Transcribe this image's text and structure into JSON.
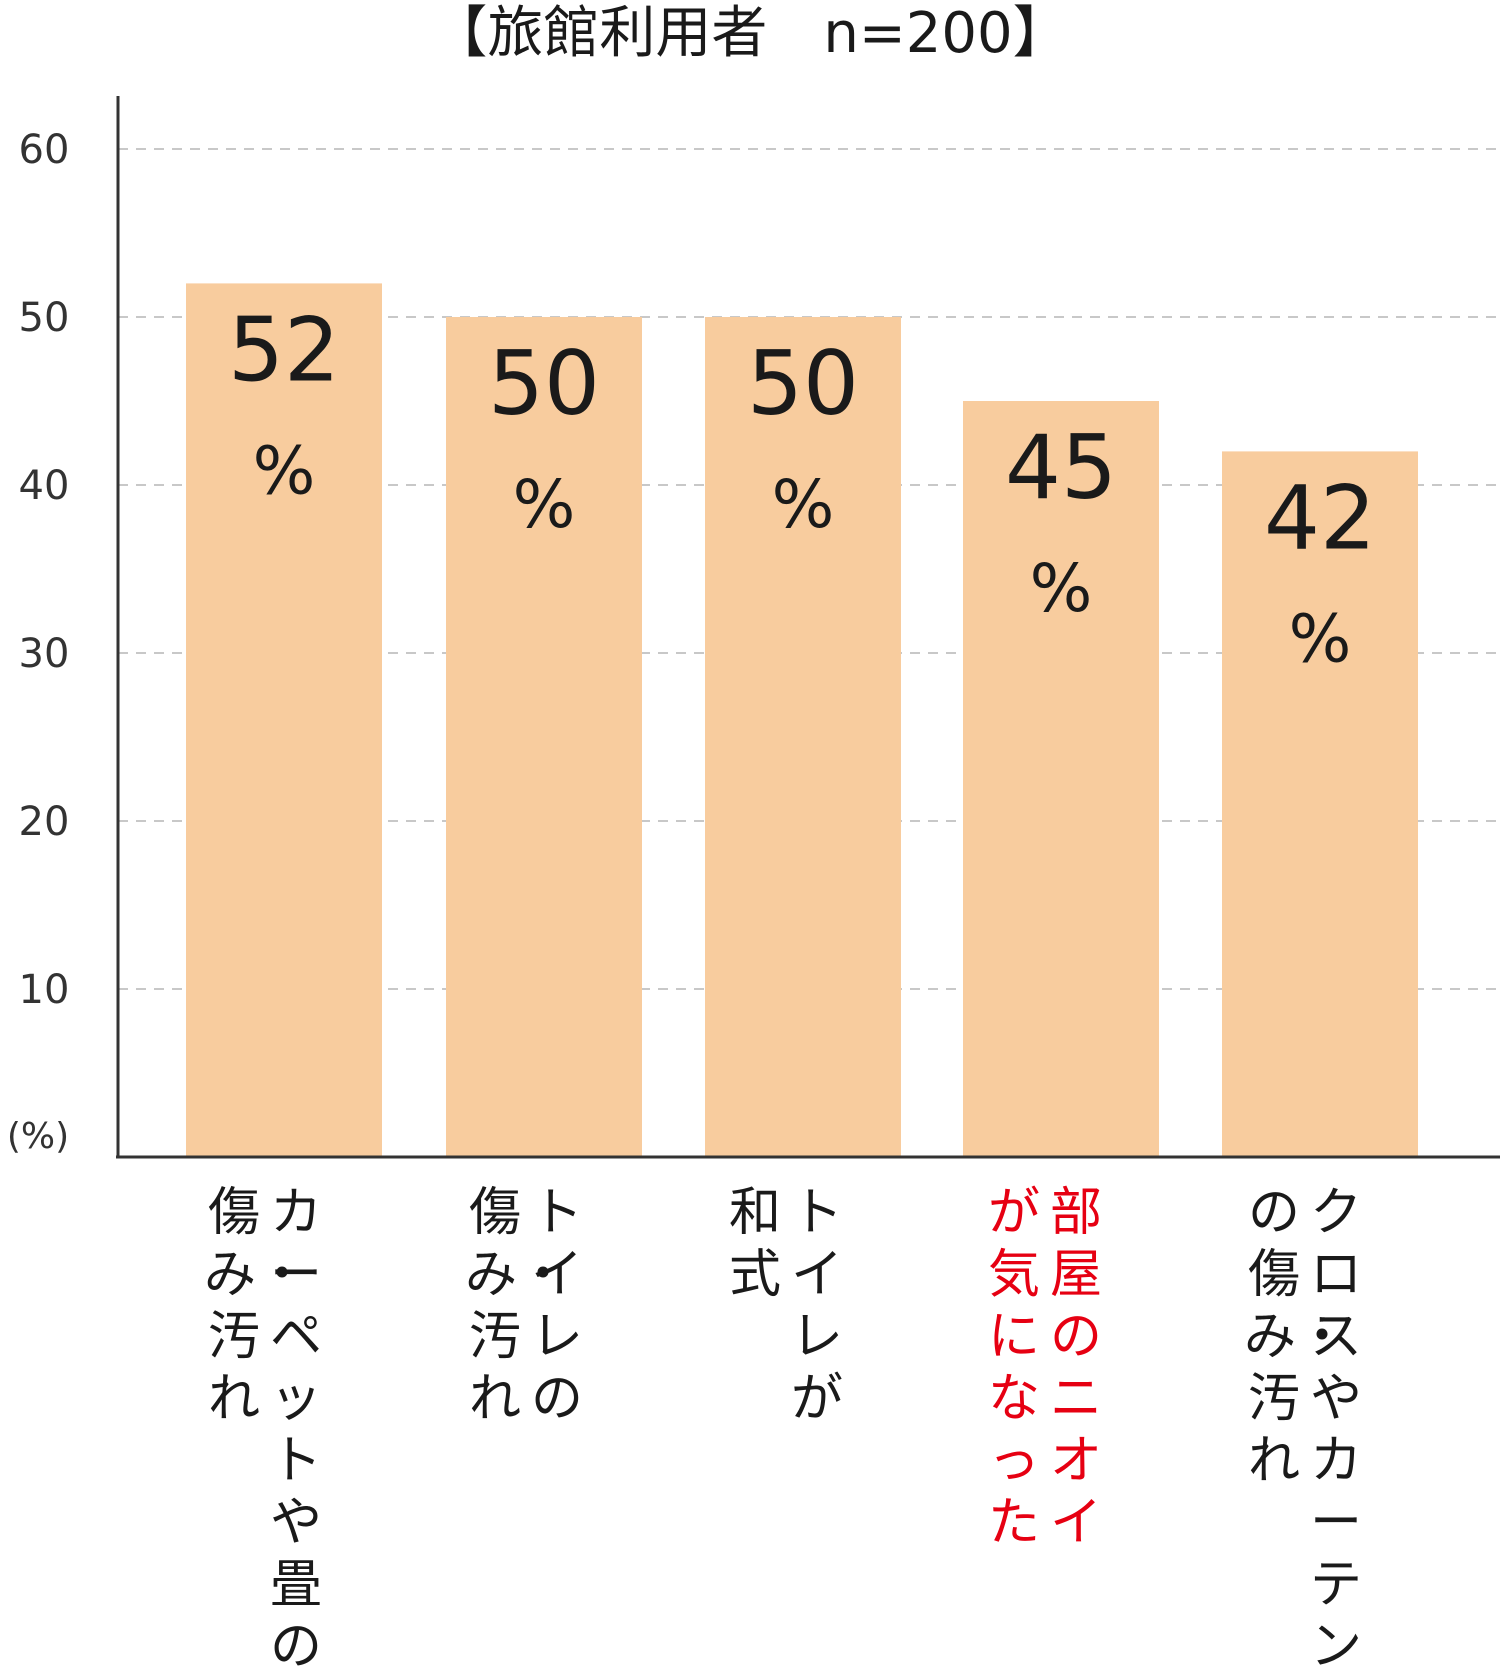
{
  "chart_data": {
    "type": "bar",
    "title": "【旅館利用者　n=200】",
    "unit_label": "(%)",
    "ylim": [
      0,
      63
    ],
    "yticks": [
      10,
      20,
      30,
      40,
      50,
      60
    ],
    "grid": true,
    "grid_style": "dashed",
    "bar_color": "#f8cc9e",
    "categories": [
      {
        "lines": [
          "カーペットや畳の",
          "傷み・汚れ"
        ],
        "color": "#1a1a1a"
      },
      {
        "lines": [
          "トイレの",
          "傷み・汚れ"
        ],
        "color": "#1a1a1a"
      },
      {
        "lines": [
          "トイレが",
          "和式"
        ],
        "color": "#1a1a1a"
      },
      {
        "lines": [
          "部屋のニオイ",
          "が気になった"
        ],
        "color": "#e60012"
      },
      {
        "lines": [
          "クロスやカーテン",
          "の傷み・汚れ"
        ],
        "color": "#1a1a1a"
      }
    ],
    "values": [
      52,
      50,
      50,
      45,
      42
    ],
    "data_labels": [
      {
        "number": "52",
        "unit": "%"
      },
      {
        "number": "50",
        "unit": "%"
      },
      {
        "number": "50",
        "unit": "%"
      },
      {
        "number": "45",
        "unit": "%"
      },
      {
        "number": "42",
        "unit": "%"
      }
    ]
  }
}
